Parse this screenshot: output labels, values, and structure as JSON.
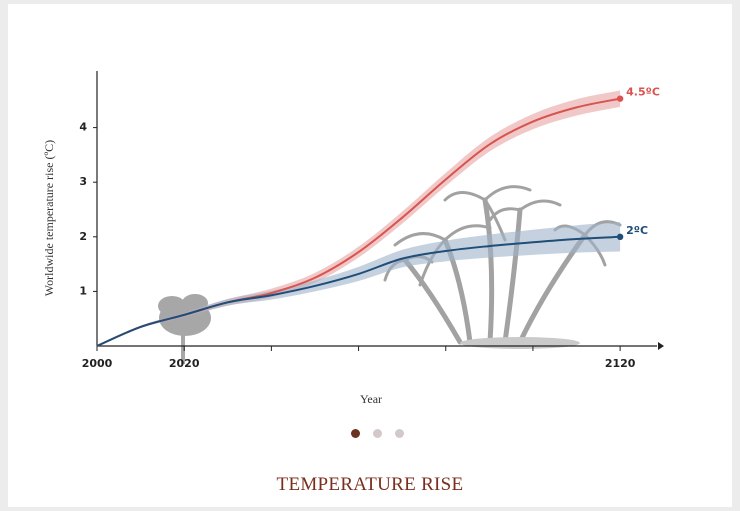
{
  "chart_data": {
    "type": "line",
    "y_label": "Worldwide temperature rise (ºC)",
    "x_label": "Year",
    "x": [
      2000,
      2010,
      2020,
      2030,
      2040,
      2050,
      2060,
      2070,
      2080,
      2090,
      2100,
      2110,
      2120
    ],
    "series": [
      {
        "name": "4.5ºC",
        "color": "#d9534f",
        "band_color": "#e8a3a3",
        "values": [
          0,
          0.35,
          0.57,
          0.8,
          0.97,
          1.25,
          1.72,
          2.35,
          3.05,
          3.69,
          4.11,
          4.37,
          4.53
        ],
        "uncertainty": [
          0,
          0.02,
          0.04,
          0.06,
          0.08,
          0.09,
          0.1,
          0.11,
          0.12,
          0.13,
          0.14,
          0.15,
          0.15
        ]
      },
      {
        "name": "2ºC",
        "color": "#1f4e79",
        "band_color": "#9fb3c8",
        "values": [
          0,
          0.35,
          0.57,
          0.8,
          0.93,
          1.1,
          1.32,
          1.6,
          1.74,
          1.83,
          1.9,
          1.96,
          2.0
        ],
        "uncertainty": [
          0,
          0.02,
          0.04,
          0.06,
          0.08,
          0.1,
          0.13,
          0.16,
          0.19,
          0.21,
          0.23,
          0.25,
          0.27
        ]
      }
    ],
    "xlim": [
      2000,
      2128
    ],
    "ylim": [
      0,
      5
    ],
    "xticks": [
      2000,
      2020,
      2120
    ],
    "minor_xticks": [
      2040,
      2060,
      2080,
      2100
    ],
    "yticks": [
      1,
      2,
      3,
      4
    ]
  },
  "caption": "TEMPERATURE RISE"
}
